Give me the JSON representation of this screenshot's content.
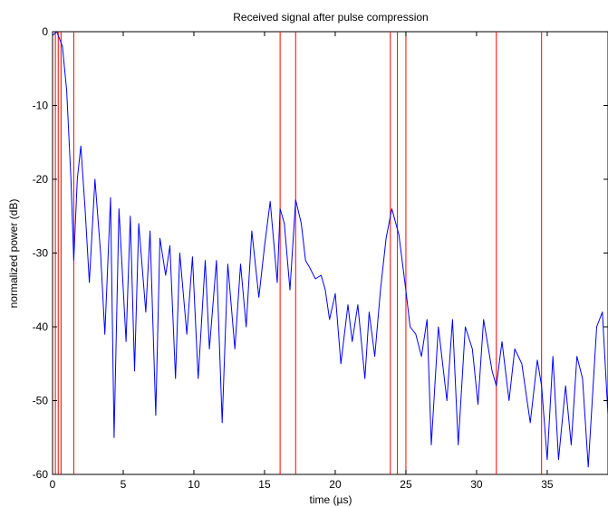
{
  "chart_data": {
    "type": "line",
    "title": "Received signal after pulse compression",
    "xlabel": "time (µs)",
    "ylabel": "normalized power (dB)",
    "xlim": [
      0,
      39.3
    ],
    "ylim": [
      -60,
      0
    ],
    "x_ticks": [
      0,
      5,
      10,
      15,
      20,
      25,
      30,
      35
    ],
    "y_ticks": [
      0,
      -10,
      -20,
      -30,
      -40,
      -50,
      -60
    ],
    "x_tick_labels": [
      "0",
      "5",
      "10",
      "15",
      "20",
      "25",
      "30",
      "35"
    ],
    "y_tick_labels": [
      "0",
      "-10",
      "-20",
      "-30",
      "-40",
      "-50",
      "-60"
    ],
    "grid": false,
    "legend": "none",
    "series": [
      {
        "color": "#0000ff",
        "x": [
          0,
          0.3,
          0.7,
          1.0,
          1.3,
          1.5,
          1.75,
          2.0,
          2.3,
          2.6,
          3.0,
          3.4,
          3.7,
          4.1,
          4.35,
          4.7,
          5.2,
          5.5,
          5.8,
          6.1,
          6.6,
          6.9,
          7.3,
          7.6,
          8.0,
          8.3,
          8.7,
          9.0,
          9.5,
          9.9,
          10.3,
          10.8,
          11.1,
          11.6,
          12.0,
          12.4,
          12.9,
          13.3,
          13.7,
          14.1,
          14.6,
          15.0,
          15.4,
          15.9,
          16.1,
          16.4,
          16.8,
          17.2,
          17.6,
          17.9,
          18.2,
          18.6,
          19.0,
          19.3,
          19.6,
          20.0,
          20.4,
          20.9,
          21.2,
          21.6,
          22.1,
          22.4,
          22.8,
          23.2,
          23.6,
          24.0,
          24.5,
          25.0,
          25.3,
          25.7,
          26.1,
          26.5,
          26.8,
          27.3,
          27.9,
          28.3,
          28.7,
          29.2,
          29.7,
          30.1,
          30.5,
          31.1,
          31.4,
          31.8,
          32.3,
          32.7,
          33.2,
          33.8,
          34.3,
          34.6,
          35.0,
          35.4,
          35.8,
          36.3,
          36.7,
          37.1,
          37.5,
          37.9,
          38.5,
          38.9,
          39.3
        ],
        "y": [
          -0.5,
          0,
          -2,
          -8,
          -20,
          -31,
          -20,
          -15.5,
          -24,
          -34,
          -20,
          -30,
          -41,
          -22.5,
          -55,
          -24,
          -42,
          -25,
          -46,
          -26,
          -38,
          -27,
          -52,
          -28,
          -33,
          -29,
          -47,
          -30,
          -41,
          -30.5,
          -47,
          -31,
          -43,
          -31,
          -53,
          -31.5,
          -43,
          -31.5,
          -40,
          -27,
          -36,
          -29,
          -23,
          -34,
          -24,
          -26,
          -35,
          -22.8,
          -26,
          -31,
          -32,
          -33.5,
          -33,
          -35,
          -39,
          -35.5,
          -45,
          -37,
          -42,
          -37,
          -47,
          -38,
          -44,
          -35,
          -28,
          -24,
          -27.5,
          -35,
          -40,
          -41,
          -44,
          -39,
          -56,
          -40,
          -50,
          -39,
          -56,
          -40,
          -43,
          -50.5,
          -39,
          -46,
          -48,
          -42,
          -50,
          -43,
          -45,
          -53,
          -44.5,
          -48,
          -58,
          -44,
          -58,
          -48,
          -56,
          -44,
          -47,
          -59,
          -40,
          -38,
          -52
        ]
      }
    ],
    "markers": {
      "color": "#ff0000",
      "x": [
        0.2,
        0.4,
        0.6,
        1.5,
        16.1,
        17.2,
        23.9,
        24.4,
        25.0,
        31.4,
        34.6
      ]
    }
  }
}
